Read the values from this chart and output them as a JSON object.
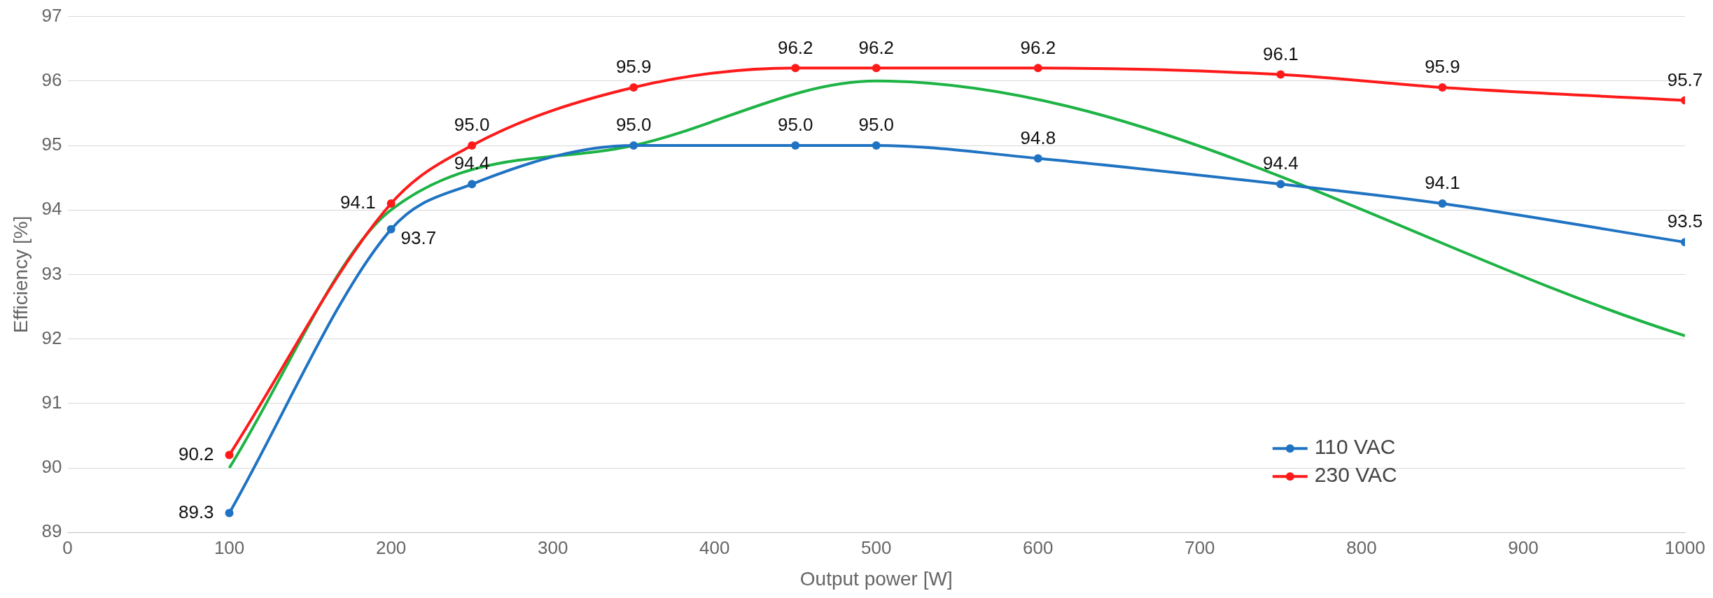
{
  "chart_data": {
    "type": "line",
    "xlabel": "Output power [W]",
    "ylabel": "Efficiency [%]",
    "xlim": [
      0,
      1000
    ],
    "xticks": [
      0,
      100,
      200,
      300,
      400,
      500,
      600,
      700,
      800,
      900,
      1000
    ],
    "ylim": [
      89,
      97
    ],
    "yticks": [
      89,
      90,
      91,
      92,
      93,
      94,
      95,
      96,
      97
    ],
    "grid": "y",
    "legend": "bottom right",
    "marker": "circle",
    "series": [
      {
        "name": "110 VAC",
        "color": "#1f73c2",
        "x": [
          100,
          200,
          250,
          350,
          450,
          500,
          600,
          750,
          850,
          1000
        ],
        "values": [
          89.3,
          93.7,
          94.4,
          95.0,
          95.0,
          95.0,
          94.8,
          94.4,
          94.1,
          93.5
        ],
        "value_labels": [
          "89.3",
          "93.7",
          "94.4",
          "95.0",
          "95.0",
          "95.0",
          "94.8",
          "94.4",
          "94.1",
          "93.5"
        ]
      },
      {
        "name": "230 VAC",
        "color": "#ff1a1a",
        "x": [
          100,
          200,
          250,
          350,
          450,
          500,
          600,
          750,
          850,
          1000
        ],
        "values": [
          90.2,
          94.1,
          95.0,
          95.9,
          96.2,
          96.2,
          96.2,
          96.1,
          95.9,
          95.7
        ],
        "value_labels": [
          "90.2",
          "94.1",
          "95.0",
          "95.9",
          "96.2",
          "96.2",
          "96.2",
          "96.1",
          "95.9",
          "95.7"
        ]
      },
      {
        "color": "#1db345",
        "marker": "none",
        "x": [
          100,
          200,
          350,
          500,
          1000
        ],
        "values": [
          90.0,
          94.0,
          95.0,
          96.0,
          92.05
        ]
      }
    ]
  }
}
